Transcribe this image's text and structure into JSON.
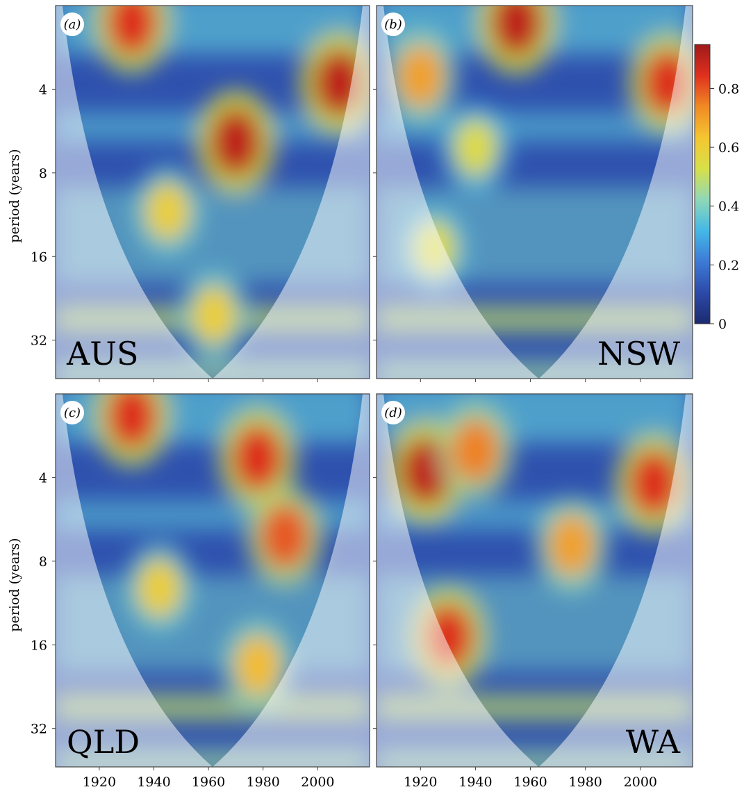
{
  "chart_data": {
    "type": "heatmap",
    "description_axes": {
      "xlabel": "",
      "ylabel": "period (years)",
      "x_ticks": [
        1920,
        1940,
        1960,
        1980,
        2000
      ],
      "y_ticks": [
        4,
        8,
        16,
        32
      ],
      "xlim": [
        1904,
        2019
      ],
      "ylim_period": [
        2,
        44
      ],
      "y_scale": "log2"
    },
    "colorbar": {
      "ticks": [
        0,
        0.2,
        0.4,
        0.6,
        0.8
      ],
      "range": [
        0,
        0.95
      ],
      "colors": [
        "#1b2a6e",
        "#2c4aa8",
        "#3d7ad6",
        "#44b8e6",
        "#8fd8b8",
        "#d8e048",
        "#f4c531",
        "#f08a24",
        "#e0301e",
        "#9e1a1a"
      ]
    },
    "panels": [
      {
        "letter": "(a)",
        "region": "AUS",
        "label_position": "bottom-left",
        "hotspots": [
          {
            "x": 1932,
            "period": 2.3,
            "value": 0.85
          },
          {
            "x": 1970,
            "period": 6.2,
            "value": 0.9
          },
          {
            "x": 2008,
            "period": 3.8,
            "value": 0.9
          },
          {
            "x": 1945,
            "period": 11,
            "value": 0.6
          },
          {
            "x": 1962,
            "period": 26,
            "value": 0.6
          }
        ]
      },
      {
        "letter": "(b)",
        "region": "NSW",
        "label_position": "bottom-right",
        "hotspots": [
          {
            "x": 1955,
            "period": 2.3,
            "value": 0.9
          },
          {
            "x": 2010,
            "period": 3.8,
            "value": 0.85
          },
          {
            "x": 1920,
            "period": 3.6,
            "value": 0.7
          },
          {
            "x": 1940,
            "period": 6.5,
            "value": 0.55
          },
          {
            "x": 1925,
            "period": 15,
            "value": 0.55
          }
        ]
      },
      {
        "letter": "(c)",
        "region": "QLD",
        "label_position": "bottom-left",
        "hotspots": [
          {
            "x": 1932,
            "period": 2.4,
            "value": 0.85
          },
          {
            "x": 1978,
            "period": 3.4,
            "value": 0.85
          },
          {
            "x": 1988,
            "period": 6.5,
            "value": 0.8
          },
          {
            "x": 1978,
            "period": 19,
            "value": 0.65
          },
          {
            "x": 1942,
            "period": 10,
            "value": 0.6
          }
        ]
      },
      {
        "letter": "(d)",
        "region": "WA",
        "label_position": "bottom-right",
        "hotspots": [
          {
            "x": 1922,
            "period": 3.8,
            "value": 0.9
          },
          {
            "x": 1930,
            "period": 15,
            "value": 0.85
          },
          {
            "x": 2005,
            "period": 4.2,
            "value": 0.85
          },
          {
            "x": 1975,
            "period": 7,
            "value": 0.7
          },
          {
            "x": 1940,
            "period": 3.2,
            "value": 0.75
          }
        ]
      }
    ]
  }
}
